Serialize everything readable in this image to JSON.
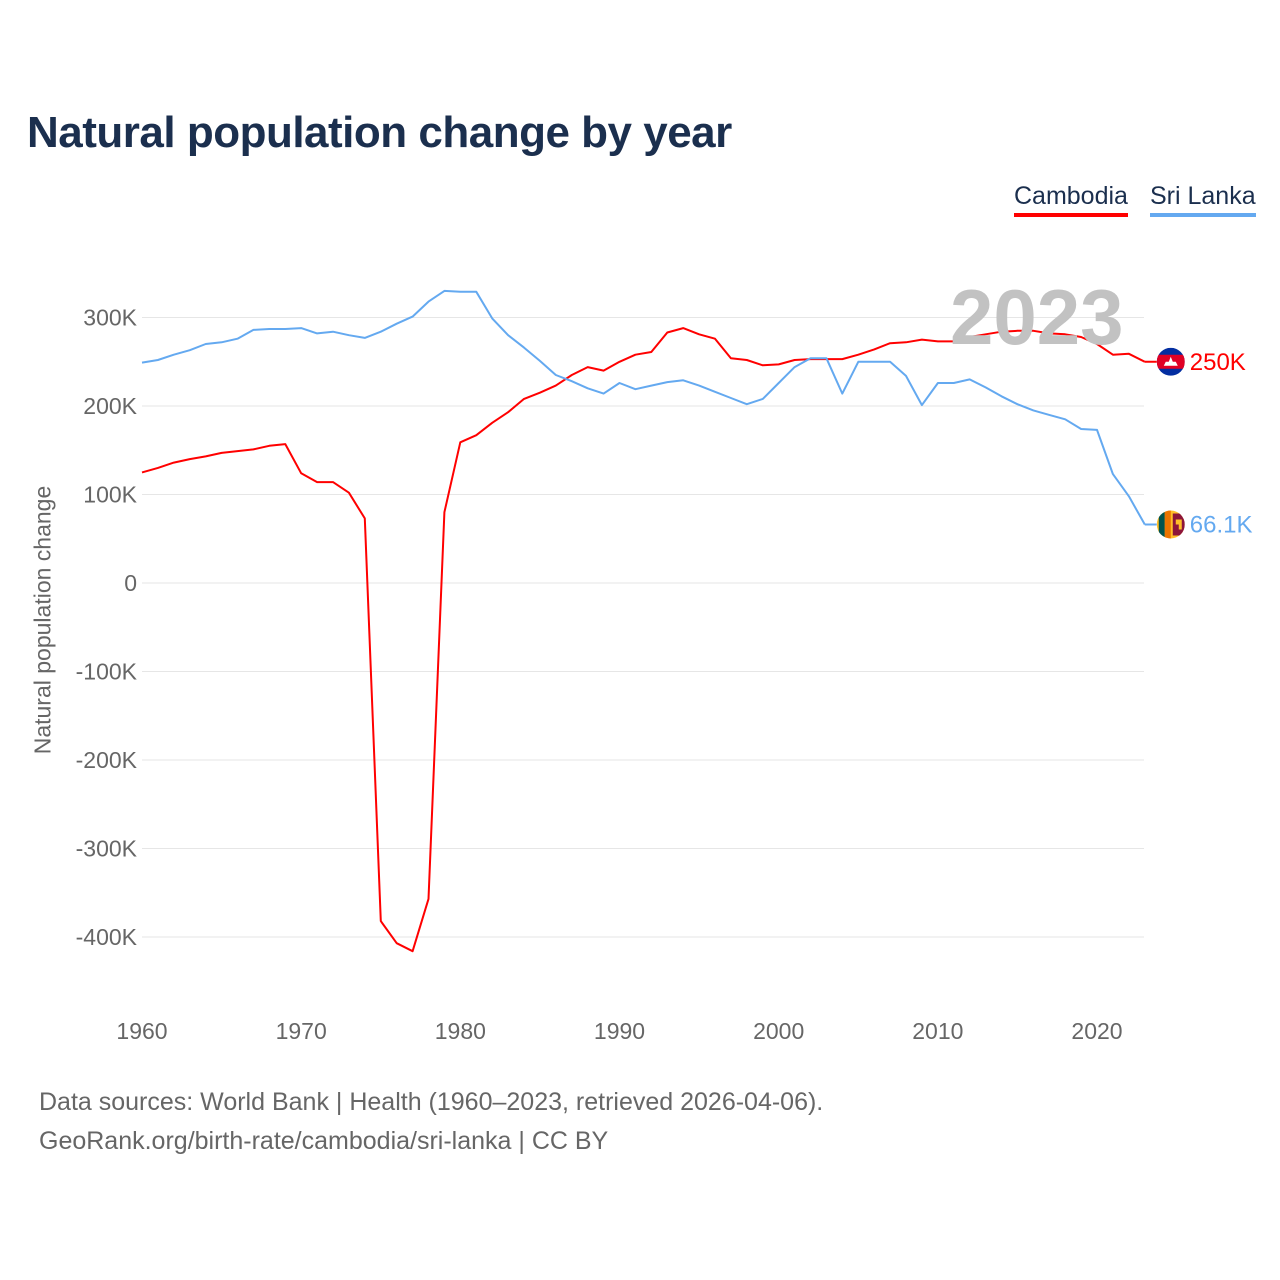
{
  "title": "Natural population change by year",
  "legend": [
    {
      "name": "Cambodia",
      "color": "#ff0000"
    },
    {
      "name": "Sri Lanka",
      "color": "#64a9f0"
    }
  ],
  "current_year": "2023",
  "footer": {
    "line1": "Data sources: World Bank | Health (1960–2023, retrieved 2026-04-06).",
    "line2": "GeoRank.org/birth-rate/cambodia/sri-lanka | CC BY"
  },
  "chart_data": {
    "type": "line",
    "title": "Natural population change by year",
    "xlabel": "",
    "ylabel": "Natural population change",
    "xlim": [
      1960,
      2023
    ],
    "ylim": [
      -450000,
      350000
    ],
    "xticks": [
      1960,
      1970,
      1980,
      1990,
      2000,
      2010,
      2020
    ],
    "yticks": [
      {
        "v": 300000,
        "label": "300K"
      },
      {
        "v": 200000,
        "label": "200K"
      },
      {
        "v": 100000,
        "label": "100K"
      },
      {
        "v": 0,
        "label": "0"
      },
      {
        "v": -100000,
        "label": "-100K"
      },
      {
        "v": -200000,
        "label": "-200K"
      },
      {
        "v": -300000,
        "label": "-300K"
      },
      {
        "v": -400000,
        "label": "-400K"
      }
    ],
    "grid": true,
    "legend_position": "top-right",
    "x_start": 1960,
    "series": [
      {
        "name": "Cambodia",
        "color": "#ff0000",
        "end_label": "250K",
        "flag": "cambodia-flag-icon",
        "values_k": [
          125,
          130,
          136,
          140,
          143,
          147,
          149,
          151,
          155,
          157,
          124,
          114,
          114,
          102,
          73,
          -382,
          -407,
          -416,
          -357,
          80,
          159,
          167,
          181,
          193,
          208,
          215,
          223,
          235,
          244,
          240,
          250,
          258,
          261,
          283,
          288,
          281,
          276,
          254,
          252,
          246,
          247,
          252,
          253,
          253,
          253,
          258,
          264,
          271,
          272,
          275,
          273,
          273,
          278,
          281,
          284,
          285,
          285,
          282,
          281,
          278,
          270,
          258,
          259,
          250
        ]
      },
      {
        "name": "Sri Lanka",
        "color": "#64a9f0",
        "end_label": "66.1K",
        "flag": "sri-lanka-flag-icon",
        "values_k": [
          249,
          252,
          258,
          263,
          270,
          272,
          276,
          286,
          287,
          287,
          288,
          282,
          284,
          280,
          277,
          284,
          293,
          301,
          318,
          330,
          329,
          329,
          299,
          280,
          266,
          251,
          235,
          228,
          220,
          214,
          226,
          219,
          223,
          227,
          229,
          223,
          216,
          209,
          202,
          208,
          226,
          244,
          254,
          254,
          214,
          250,
          250,
          250,
          234,
          201,
          226,
          226,
          230,
          221,
          211,
          202,
          195,
          190,
          185,
          174,
          173,
          123,
          98,
          66.1
        ]
      }
    ]
  }
}
